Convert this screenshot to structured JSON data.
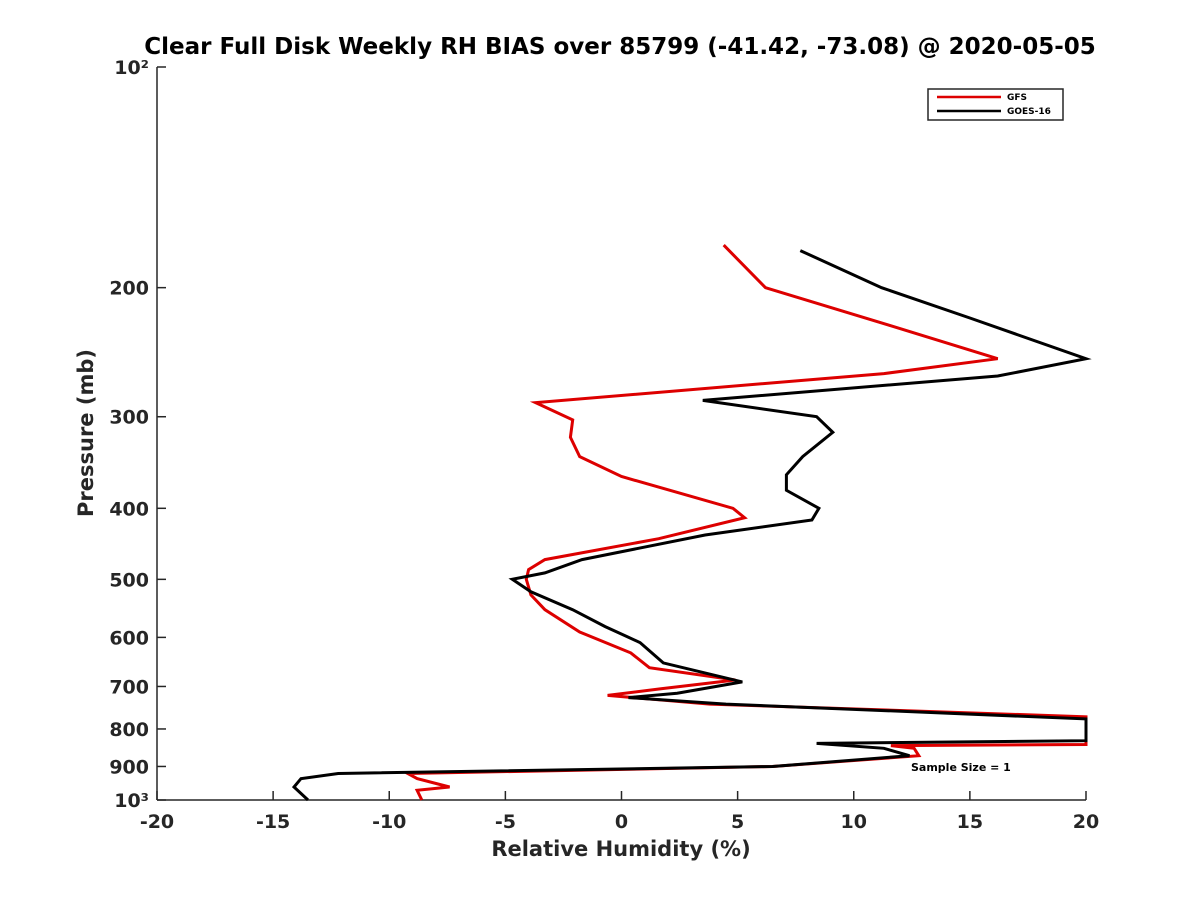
{
  "chart_data": {
    "type": "line",
    "title": "Clear Full Disk Weekly RH BIAS over 85799 (-41.42, -73.08) @ 2020-05-05",
    "xlabel": "Relative Humidity (%)",
    "ylabel": "Pressure (mb)",
    "xlim": [
      -20,
      20
    ],
    "ylim": [
      100,
      1000
    ],
    "yscale": "log",
    "y_reversed": true,
    "grid": false,
    "legend_position": "top-right",
    "x_ticks": [
      -20,
      -15,
      -10,
      -5,
      0,
      5,
      10,
      15,
      20
    ],
    "x_tick_labels": [
      "-20",
      "-15",
      "-10",
      "-5",
      "0",
      "5",
      "10",
      "15",
      "20"
    ],
    "y_ticks": [
      100,
      200,
      300,
      400,
      500,
      600,
      700,
      800,
      900,
      1000
    ],
    "y_tick_labels": [
      "10²",
      "200",
      "300",
      "400",
      "500",
      "600",
      "700",
      "800",
      "900",
      "10³"
    ],
    "annotation": "Sample Size = 1",
    "series": [
      {
        "name": "GFS",
        "color": "#dd0000",
        "points": [
          [
            4.4,
            175
          ],
          [
            6.2,
            200
          ],
          [
            11.5,
            225
          ],
          [
            16.2,
            250
          ],
          [
            11.3,
            262
          ],
          [
            -3.7,
            287
          ],
          [
            -2.1,
            303
          ],
          [
            -2.2,
            320
          ],
          [
            -1.8,
            340
          ],
          [
            0.0,
            362
          ],
          [
            4.8,
            400
          ],
          [
            5.3,
            412
          ],
          [
            1.6,
            440
          ],
          [
            -3.3,
            470
          ],
          [
            -4.0,
            485
          ],
          [
            -4.1,
            500
          ],
          [
            -3.9,
            525
          ],
          [
            -3.3,
            550
          ],
          [
            -1.8,
            590
          ],
          [
            0.4,
            630
          ],
          [
            1.2,
            660
          ],
          [
            4.9,
            686
          ],
          [
            1.7,
            705
          ],
          [
            -0.6,
            720
          ],
          [
            3.8,
            740
          ],
          [
            20.0,
            770
          ],
          [
            20.0,
            840
          ],
          [
            11.6,
            843
          ],
          [
            12.6,
            850
          ],
          [
            12.8,
            870
          ],
          [
            6.5,
            900
          ],
          [
            -9.2,
            920
          ],
          [
            -8.8,
            935
          ],
          [
            -7.4,
            960
          ],
          [
            -8.8,
            970
          ],
          [
            -8.6,
            1000
          ]
        ]
      },
      {
        "name": "GOES-16",
        "color": "#000000",
        "points": [
          [
            7.7,
            178
          ],
          [
            11.2,
            200
          ],
          [
            15.0,
            220
          ],
          [
            20.0,
            250
          ],
          [
            16.2,
            264
          ],
          [
            3.5,
            285
          ],
          [
            8.4,
            300
          ],
          [
            9.1,
            315
          ],
          [
            7.8,
            340
          ],
          [
            7.1,
            360
          ],
          [
            7.1,
            378
          ],
          [
            8.5,
            400
          ],
          [
            8.2,
            415
          ],
          [
            3.6,
            435
          ],
          [
            -1.7,
            470
          ],
          [
            -3.3,
            490
          ],
          [
            -4.7,
            500
          ],
          [
            -3.9,
            520
          ],
          [
            -2.1,
            550
          ],
          [
            -0.7,
            580
          ],
          [
            0.8,
            610
          ],
          [
            1.8,
            650
          ],
          [
            5.2,
            690
          ],
          [
            2.4,
            715
          ],
          [
            0.3,
            725
          ],
          [
            4.5,
            740
          ],
          [
            20.0,
            775
          ],
          [
            20.0,
            830
          ],
          [
            8.4,
            837
          ],
          [
            11.3,
            850
          ],
          [
            12.4,
            870
          ],
          [
            6.5,
            900
          ],
          [
            -12.2,
            920
          ],
          [
            -13.8,
            935
          ],
          [
            -14.1,
            960
          ],
          [
            -13.5,
            1000
          ]
        ]
      }
    ]
  }
}
